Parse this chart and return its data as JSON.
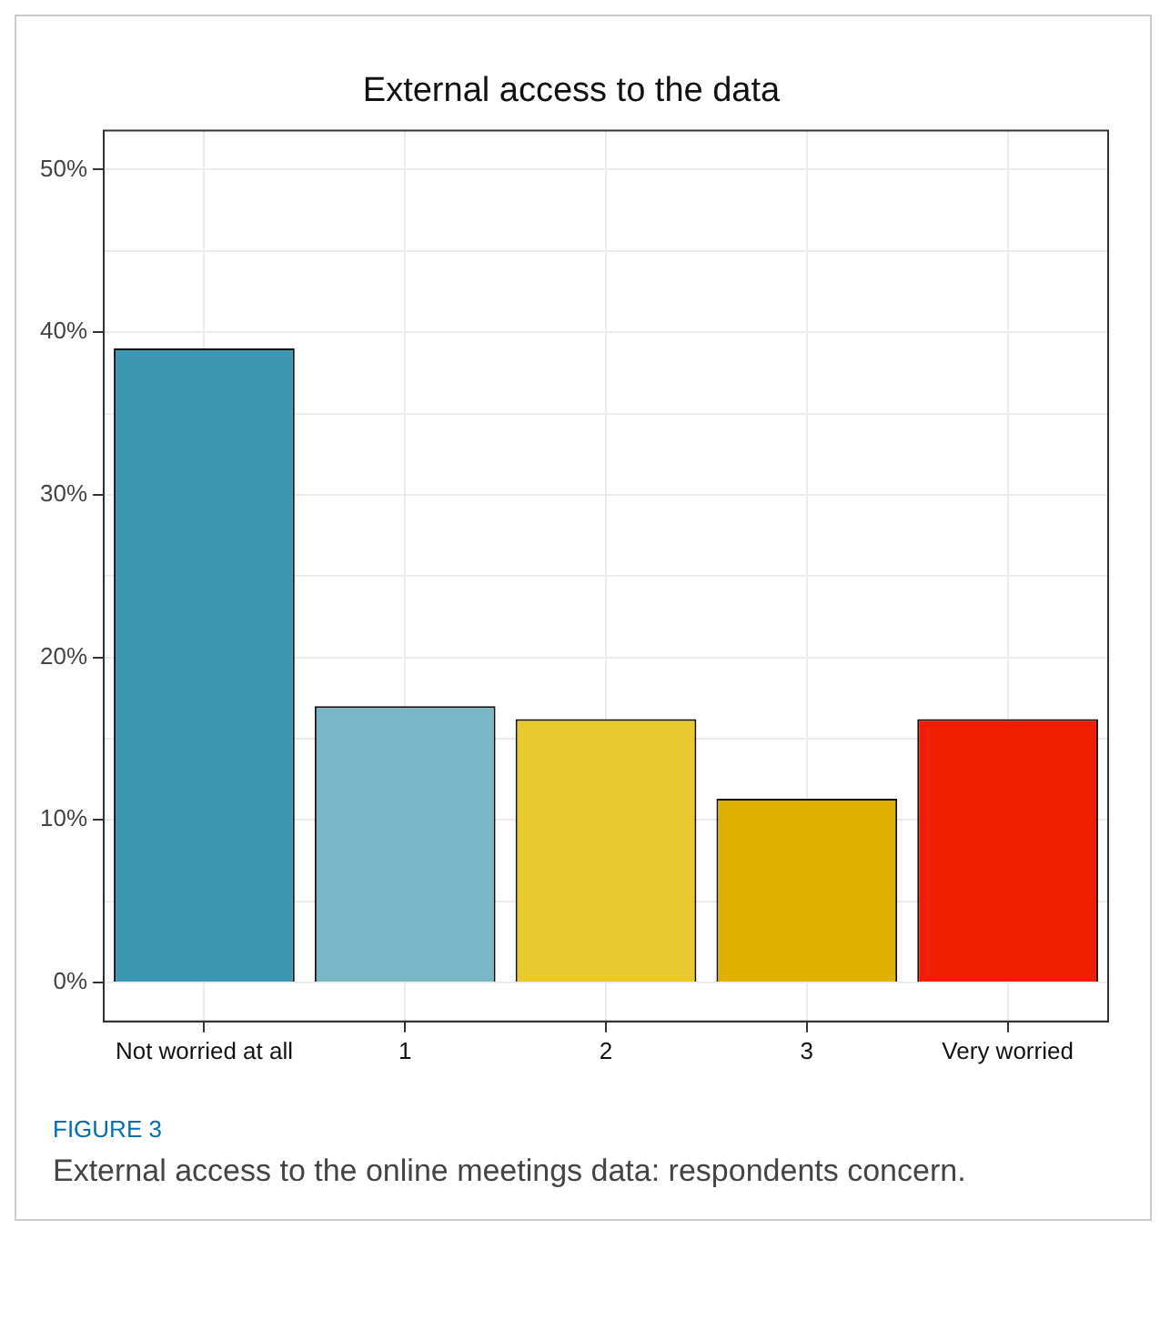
{
  "chart_data": {
    "type": "bar",
    "title": "External access to the data",
    "categories": [
      "Not worried at all",
      "1",
      "2",
      "3",
      "Very worried"
    ],
    "values": [
      39.0,
      17.0,
      16.2,
      11.3,
      16.2
    ],
    "colors": [
      "#3d97b3",
      "#79b6c6",
      "#e9c92d",
      "#e0b000",
      "#f01e00"
    ],
    "ylim": [
      -2.4,
      52.4
    ],
    "yticks": [
      {
        "value": 0,
        "label": "0%"
      },
      {
        "value": 5,
        "label": null
      },
      {
        "value": 10,
        "label": "10%"
      },
      {
        "value": 15,
        "label": null
      },
      {
        "value": 20,
        "label": "20%"
      },
      {
        "value": 25,
        "label": null
      },
      {
        "value": 30,
        "label": "30%"
      },
      {
        "value": 35,
        "label": null
      },
      {
        "value": 40,
        "label": "40%"
      },
      {
        "value": 45,
        "label": null
      },
      {
        "value": 50,
        "label": "50%"
      }
    ],
    "grid": true,
    "annotations": [
      "FIGURE 3",
      "External access to the online meetings data: respondents concern."
    ]
  }
}
